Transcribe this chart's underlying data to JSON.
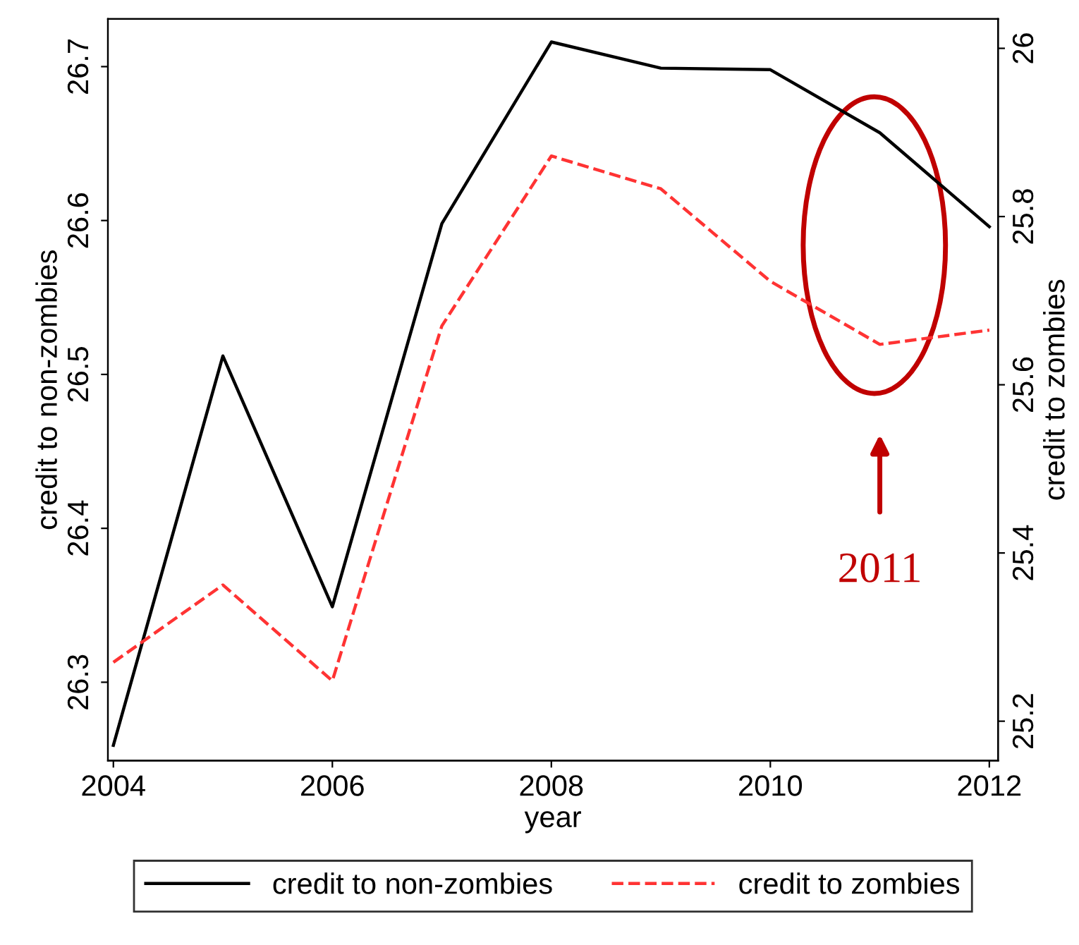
{
  "chart_data": {
    "type": "line",
    "xlabel": "year",
    "ylabel": "credit to non-zombies",
    "y2label": "credit to zombies",
    "x": [
      2004,
      2005,
      2006,
      2007,
      2008,
      2009,
      2010,
      2011,
      2012
    ],
    "xlim": [
      2003.95,
      2012.08
    ],
    "xticks": [
      2004,
      2006,
      2008,
      2010,
      2012
    ],
    "ylim": [
      26.249,
      26.731
    ],
    "yticks": [
      26.3,
      26.4,
      26.5,
      26.6,
      26.7
    ],
    "y2lim": [
      25.153,
      26.035
    ],
    "y2ticks": [
      25.2,
      25.4,
      25.6,
      25.8,
      {
        "value": 26,
        "label": "26"
      }
    ],
    "series": [
      {
        "name": "credit to non-zombies",
        "color": "#000000",
        "line_style": "solid",
        "values": [
          26.259,
          26.512,
          26.349,
          26.598,
          26.716,
          26.699,
          26.698,
          26.657,
          26.596
        ]
      },
      {
        "name": "credit to zombies",
        "color": "#ff3333",
        "line_style": "dashed",
        "axis": "y2",
        "values": [
          25.27,
          25.362,
          25.248,
          25.67,
          25.872,
          25.833,
          25.723,
          25.648,
          25.665
        ]
      }
    ],
    "annotations": [
      {
        "text": "2011",
        "x": 2011
      }
    ],
    "legend": "bottom",
    "grid": false,
    "marker": "none"
  }
}
